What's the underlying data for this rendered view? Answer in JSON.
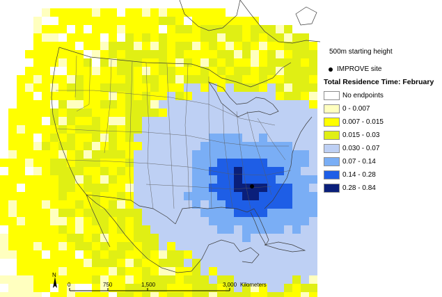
{
  "map": {
    "site": {
      "lon": -82.2,
      "lat": 35.8
    },
    "scale": {
      "labels": [
        "0",
        "750",
        "1,500",
        "3,000"
      ],
      "units": "Kilometers"
    },
    "north_letter": "N"
  },
  "legend": {
    "starting_height": "500m starting height",
    "site_label": "IMPROVE site",
    "title": "Total Residence Time: February",
    "classes": [
      {
        "label": "No endpoints",
        "color": "#ffffff"
      },
      {
        "label": "0 - 0.007",
        "color": "#ffffbf"
      },
      {
        "label": "0.007 - 0.015",
        "color": "#ffff00"
      },
      {
        "label": "0.015 - 0.03",
        "color": "#e0ef14"
      },
      {
        "label": "0.030 - 0.07",
        "color": "#bed0f4"
      },
      {
        "label": "0.07 - 0.14",
        "color": "#7aaef5"
      },
      {
        "label": "0.14 - 0.28",
        "color": "#1e5ee6"
      },
      {
        "label": "0.28 - 0.84",
        "color": "#0a1f7a"
      }
    ]
  }
}
